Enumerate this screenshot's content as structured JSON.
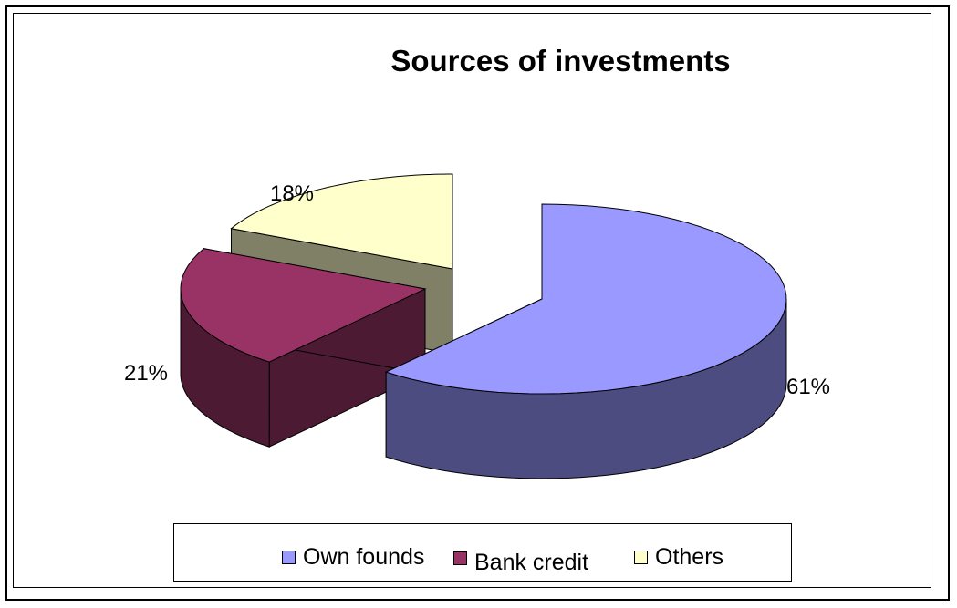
{
  "chart_data": {
    "type": "pie",
    "title": "Sources of investments",
    "categories": [
      "Own founds",
      "Bank credit",
      "Others"
    ],
    "values": [
      61,
      21,
      18
    ],
    "value_labels": [
      "61%",
      "21%",
      "18%"
    ],
    "colors": {
      "Own founds": "#9999ff",
      "Bank credit": "#993366",
      "Others": "#ffffcc"
    },
    "side_colors": {
      "Own founds": "#4c4c80",
      "Bank credit": "#4d1a33",
      "Others": "#808066"
    },
    "legend_position": "bottom",
    "exploded": true,
    "three_d": true
  }
}
